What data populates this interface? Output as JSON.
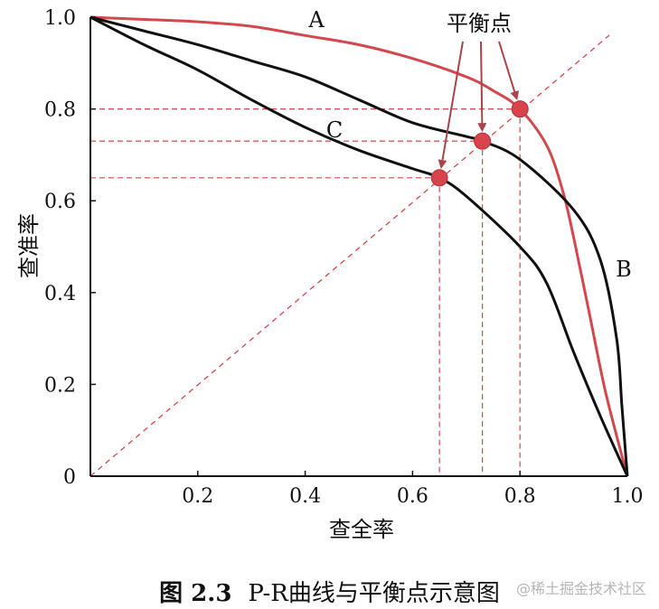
{
  "chart_data": {
    "type": "line",
    "xlabel": "查全率",
    "ylabel": "查准率",
    "xlim": [
      0,
      1.0
    ],
    "ylim": [
      0,
      1.0
    ],
    "x_ticks": [
      {
        "value": 0.2,
        "label": "0.2"
      },
      {
        "value": 0.4,
        "label": "0.4"
      },
      {
        "value": 0.6,
        "label": "0.6"
      },
      {
        "value": 0.8,
        "label": "0.8"
      },
      {
        "value": 1.0,
        "label": "1.0"
      }
    ],
    "y_ticks": [
      {
        "value": 0,
        "label": "0"
      },
      {
        "value": 0.2,
        "label": "0.2"
      },
      {
        "value": 0.4,
        "label": "0.4"
      },
      {
        "value": 0.6,
        "label": "0.6"
      },
      {
        "value": 0.8,
        "label": "0.8"
      },
      {
        "value": 1.0,
        "label": "1.0"
      }
    ],
    "grid": false,
    "series": [
      {
        "name": "A",
        "color": "#d4474c",
        "x": [
          0.0,
          0.1,
          0.2,
          0.3,
          0.4,
          0.5,
          0.6,
          0.7,
          0.75,
          0.8,
          0.85,
          0.88,
          0.9,
          0.93,
          0.96,
          1.0
        ],
        "y": [
          1.0,
          0.995,
          0.99,
          0.98,
          0.96,
          0.94,
          0.91,
          0.87,
          0.84,
          0.8,
          0.72,
          0.62,
          0.52,
          0.35,
          0.18,
          0.0
        ]
      },
      {
        "name": "B",
        "color": "#111111",
        "x": [
          0.0,
          0.1,
          0.2,
          0.3,
          0.4,
          0.5,
          0.6,
          0.7,
          0.73,
          0.8,
          0.9,
          0.95,
          0.98,
          0.99,
          1.0
        ],
        "y": [
          1.0,
          0.97,
          0.94,
          0.905,
          0.87,
          0.82,
          0.77,
          0.74,
          0.73,
          0.69,
          0.58,
          0.47,
          0.3,
          0.15,
          0.0
        ]
      },
      {
        "name": "C",
        "color": "#111111",
        "x": [
          0.0,
          0.1,
          0.2,
          0.3,
          0.4,
          0.5,
          0.6,
          0.65,
          0.7,
          0.8,
          0.85,
          0.9,
          0.95,
          1.0
        ],
        "y": [
          1.0,
          0.94,
          0.885,
          0.82,
          0.76,
          0.71,
          0.67,
          0.65,
          0.61,
          0.5,
          0.42,
          0.27,
          0.13,
          0.0
        ]
      }
    ],
    "reference_line": {
      "x": [
        0,
        1.0
      ],
      "y": [
        0,
        1.0
      ],
      "color": "#d4474c",
      "style": "dashed"
    },
    "points": [
      {
        "series": "A",
        "x": 0.8,
        "y": 0.8
      },
      {
        "series": "B",
        "x": 0.73,
        "y": 0.73
      },
      {
        "series": "C",
        "x": 0.65,
        "y": 0.65
      }
    ],
    "point_color": "#d9434b",
    "annotation": {
      "text": "平衡点"
    },
    "curve_labels": [
      {
        "text": "A",
        "series": "A"
      },
      {
        "text": "B",
        "series": "B"
      },
      {
        "text": "C",
        "series": "C"
      }
    ]
  },
  "caption": {
    "figure_number": "图 2.3",
    "text": "P-R曲线与平衡点示意图"
  },
  "watermark": "@稀土掘金技术社区"
}
